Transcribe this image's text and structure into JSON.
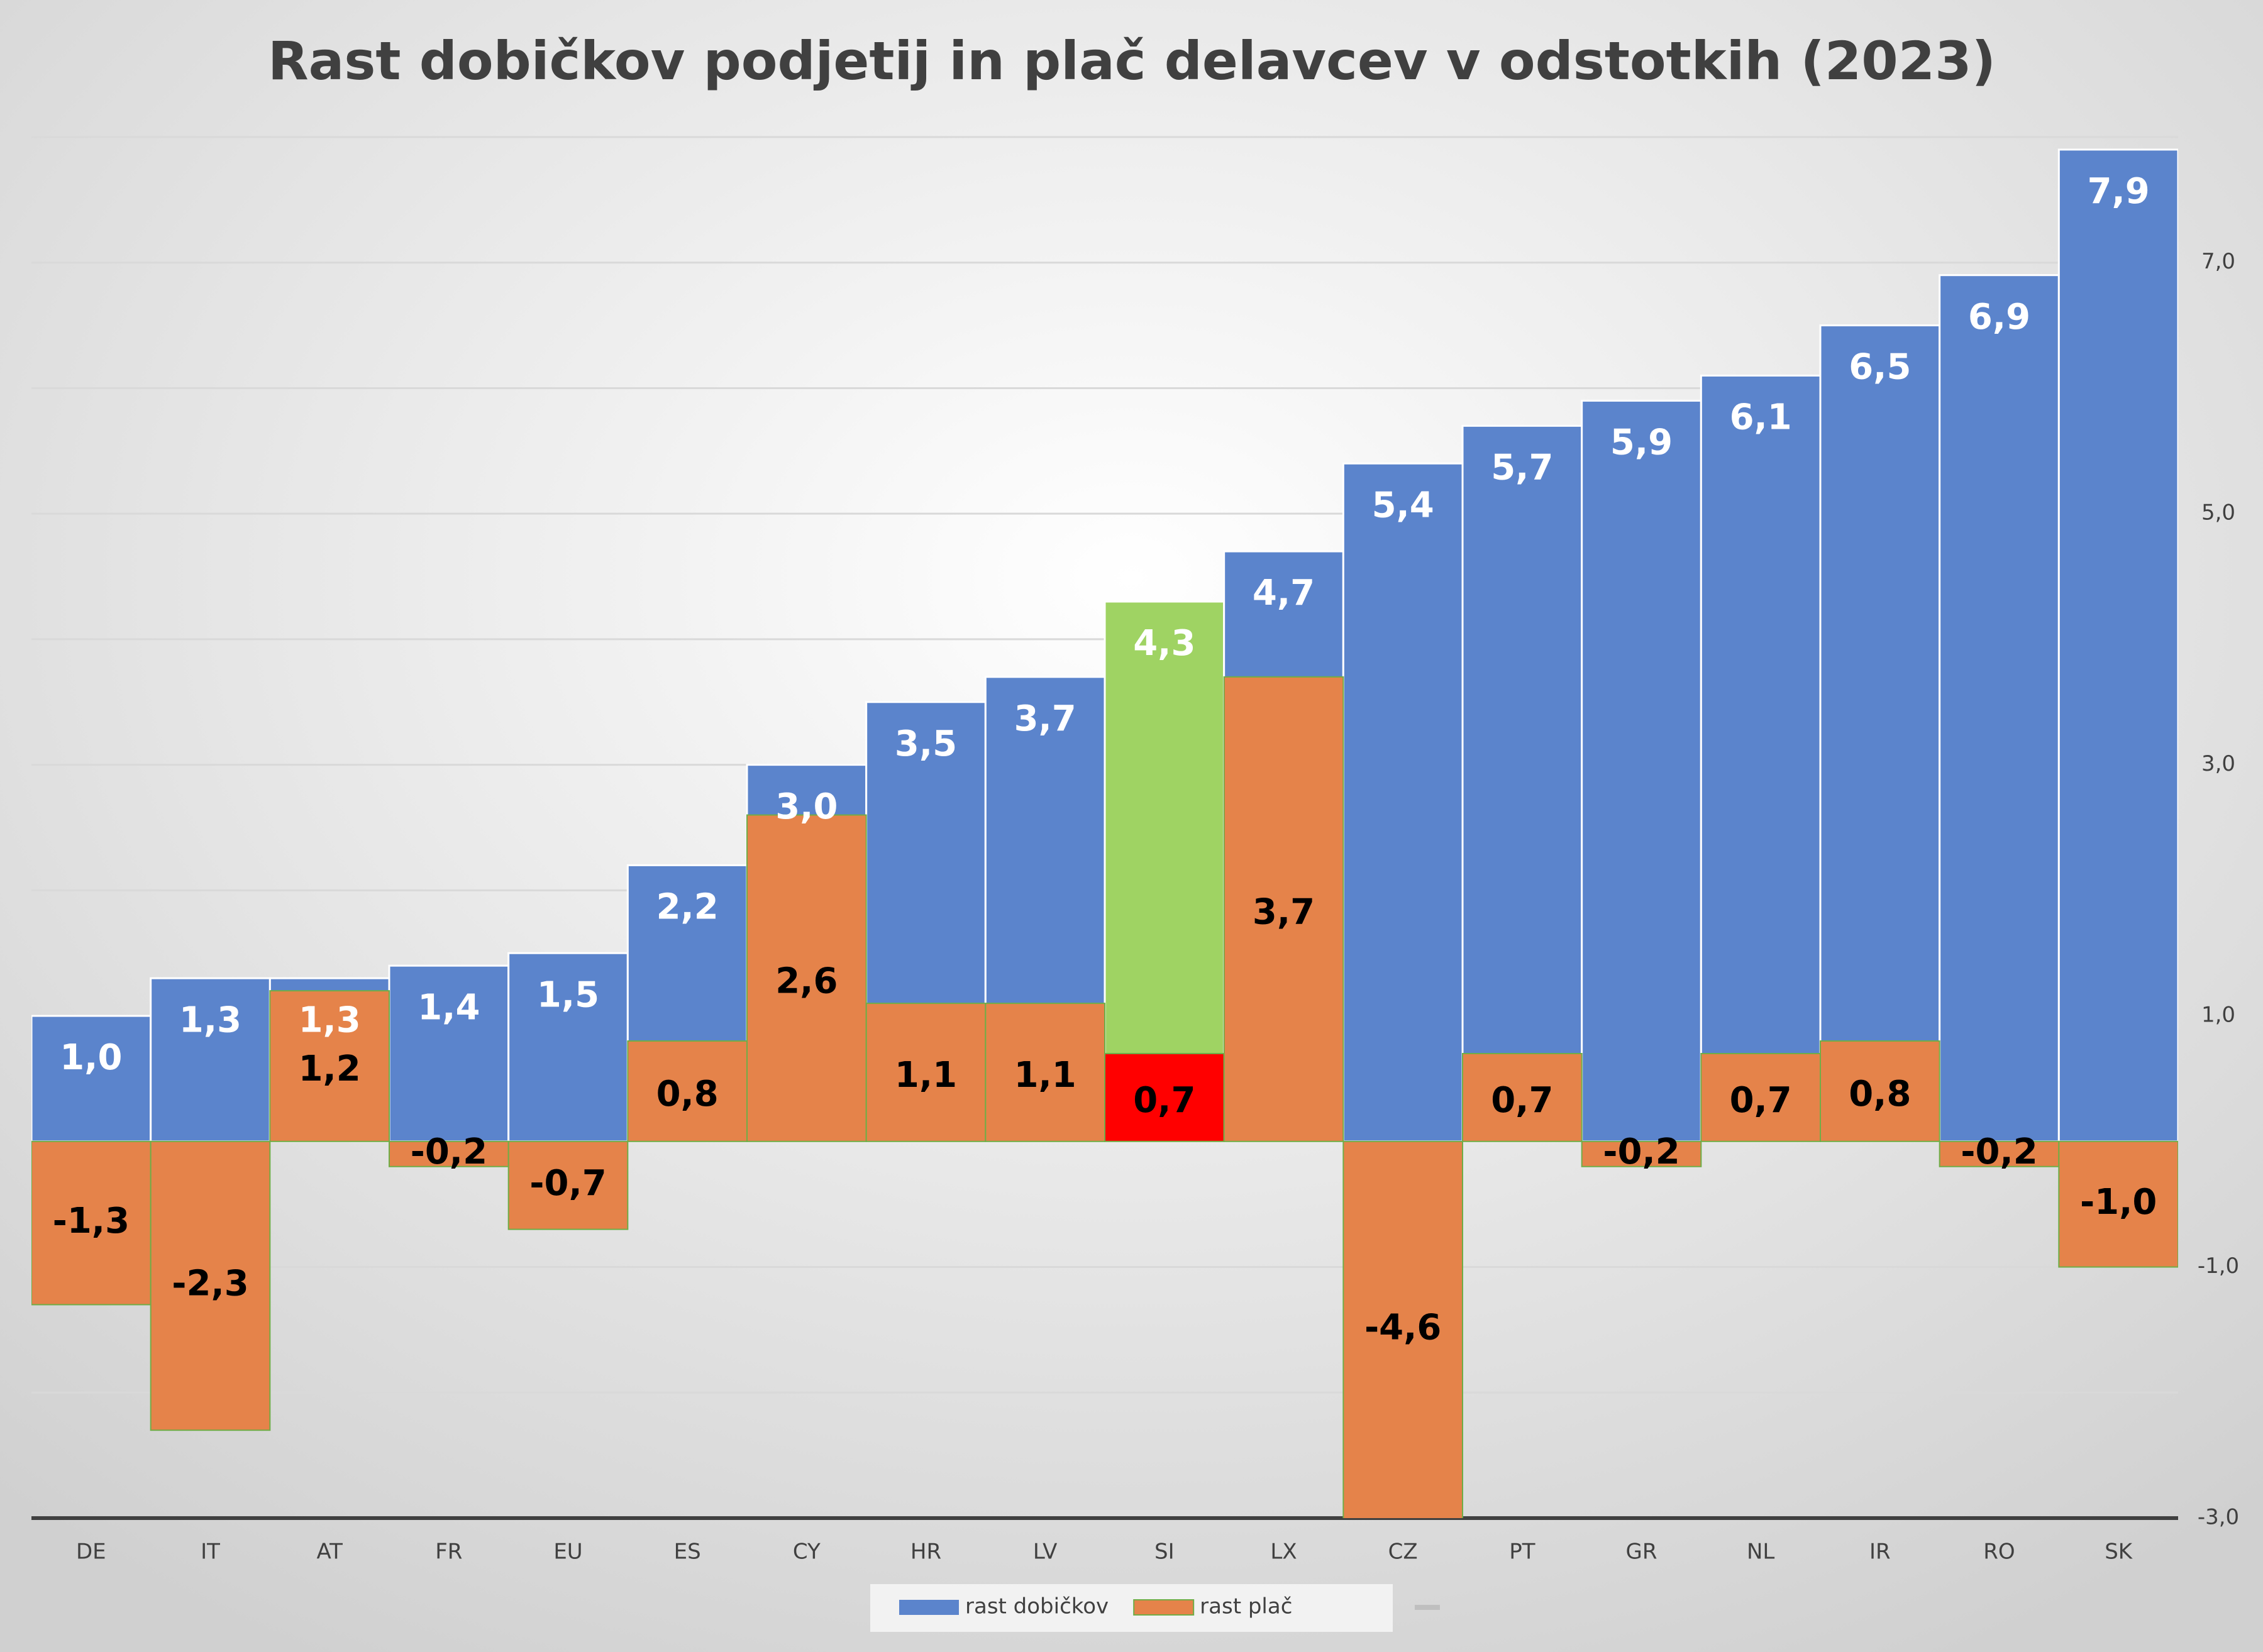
{
  "chart_data": {
    "type": "overlap_bar",
    "title": "Rast dobičkov podjetij in plač delavcev v odstotkih (2023)",
    "categories": [
      "DE",
      "IT",
      "AT",
      "FR",
      "EU",
      "ES",
      "CY",
      "HR",
      "LV",
      "SI",
      "LX",
      "CZ",
      "PT",
      "GR",
      "NL",
      "IR",
      "RO",
      "SK"
    ],
    "series": [
      {
        "name": "rast dobičkov",
        "color": "#5b84cc",
        "point_colors": {
          "9": "#9fd363"
        },
        "values": [
          1.0,
          1.3,
          1.3,
          1.4,
          1.5,
          2.2,
          3.0,
          3.5,
          3.7,
          4.3,
          4.7,
          5.4,
          5.7,
          5.9,
          6.1,
          6.5,
          6.9,
          7.9
        ],
        "value_labels": [
          "1,0",
          "1,3",
          "1,3",
          "1,4",
          "1,5",
          "2,2",
          "3,0",
          "3,5",
          "3,7",
          "4,3",
          "4,7",
          "5,4",
          "5,7",
          "5,9",
          "6,1",
          "6,5",
          "6,9",
          "7,9"
        ]
      },
      {
        "name": "rast plač",
        "color": "#e5834a",
        "point_colors": {
          "9": "#ff0000"
        },
        "values": [
          -1.3,
          -2.3,
          1.2,
          -0.2,
          -0.7,
          0.8,
          2.6,
          1.1,
          1.1,
          0.7,
          3.7,
          -4.6,
          0.7,
          -0.2,
          0.7,
          0.8,
          -0.2,
          -1.0
        ],
        "value_labels": [
          "-1,3",
          "-2,3",
          "1,2",
          "-0,2",
          "-0,7",
          "0,8",
          "2,6",
          "1,1",
          "1,1",
          "0,7",
          "3,7",
          "-4,6",
          "0,7",
          "-0,2",
          "0,7",
          "0,8",
          "-0,2",
          "-1,0"
        ]
      }
    ],
    "ylim": [
      -3,
      8
    ],
    "yticks": [
      {
        "value": -3,
        "label": "-3,0"
      },
      {
        "value": -1,
        "label": "-1,0"
      },
      {
        "value": 1,
        "label": "1,0"
      },
      {
        "value": 3,
        "label": "3,0"
      },
      {
        "value": 5,
        "label": "5,0"
      },
      {
        "value": 7,
        "label": "7,0"
      }
    ],
    "ygrid": [
      -2,
      0,
      2,
      4,
      6,
      8
    ],
    "grid": true,
    "y_axis_side": "right",
    "legend": "bottom"
  }
}
